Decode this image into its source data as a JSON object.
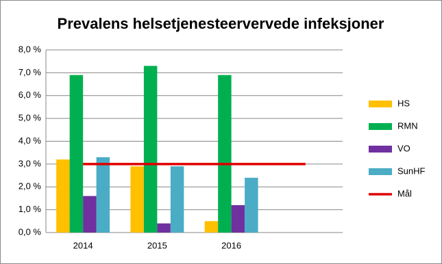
{
  "chart_data": {
    "type": "bar",
    "title": "Prevalens helsetjenesteervervede infeksjoner",
    "categories": [
      "2014",
      "2015",
      "2016",
      null
    ],
    "series": [
      {
        "name": "HS",
        "color": "#ffc000",
        "values": [
          3.2,
          2.9,
          0.5,
          null
        ]
      },
      {
        "name": "RMN",
        "color": "#00b050",
        "values": [
          6.9,
          7.3,
          6.9,
          null
        ]
      },
      {
        "name": "VO",
        "color": "#7030a0",
        "values": [
          1.6,
          0.4,
          1.2,
          null
        ]
      },
      {
        "name": "SunHF",
        "color": "#4bacc6",
        "values": [
          3.3,
          2.9,
          2.4,
          null
        ]
      },
      {
        "name": "Mål",
        "color": "#e00000",
        "type": "line",
        "values": [
          3,
          3,
          3,
          3
        ]
      }
    ],
    "ylim": [
      0,
      8
    ],
    "yticks": [
      {
        "value": 0,
        "label": "0,0 %"
      },
      {
        "value": 1,
        "label": "1,0 %"
      },
      {
        "value": 2,
        "label": "2,0 %"
      },
      {
        "value": 3,
        "label": "3,0 %"
      },
      {
        "value": 4,
        "label": "4,0 %"
      },
      {
        "value": 5,
        "label": "5,0 %"
      },
      {
        "value": 6,
        "label": "6,0 %"
      },
      {
        "value": 7,
        "label": "7,0 %"
      },
      {
        "value": 8,
        "label": "8,0 %"
      }
    ],
    "grid": true,
    "legend": "right"
  }
}
